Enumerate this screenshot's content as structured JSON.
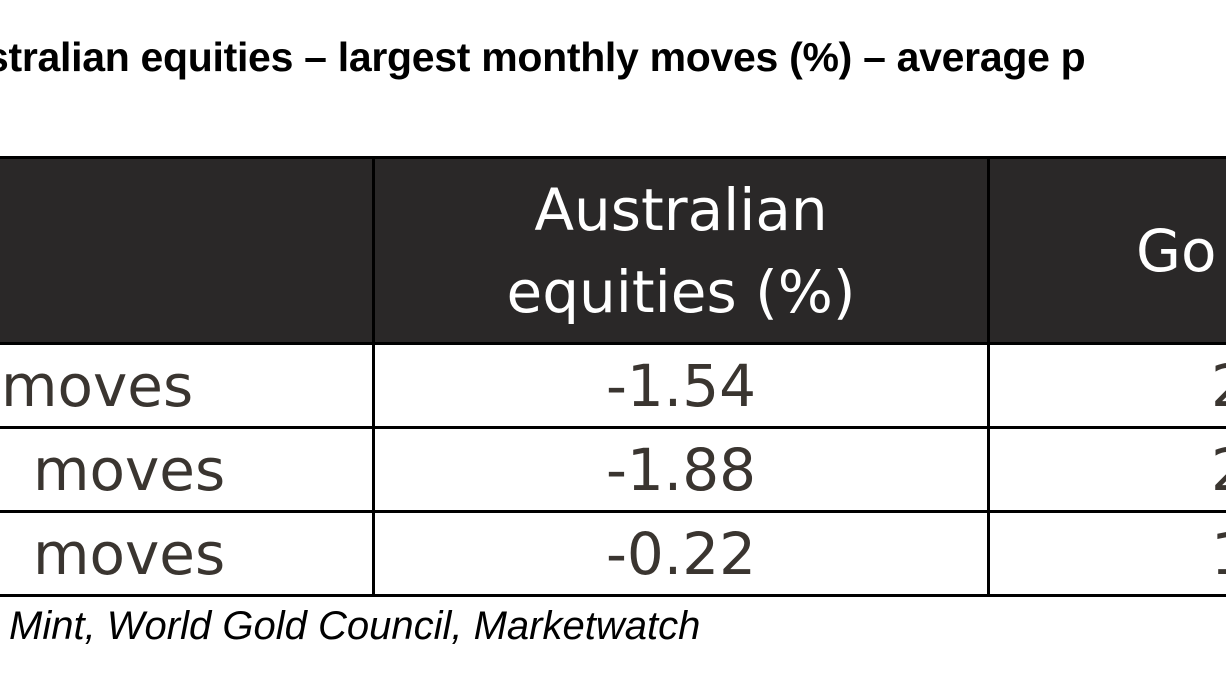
{
  "chart_data": {
    "type": "table",
    "title": "stralian equities – largest monthly moves (%) – average p",
    "columns": [
      "",
      "Australian equities (%)",
      "Go"
    ],
    "header_lines": [
      [
        "Australian",
        "equities (%)"
      ],
      [
        "Go"
      ]
    ],
    "rows": [
      {
        "label": "moves",
        "values": [
          "-1.54",
          "2"
        ]
      },
      {
        "label": " moves",
        "values": [
          "-1.88",
          "2"
        ]
      },
      {
        "label": " moves",
        "values": [
          "-0.22",
          "1"
        ]
      }
    ],
    "source": "Mint, World Gold Council, Marketwatch"
  }
}
